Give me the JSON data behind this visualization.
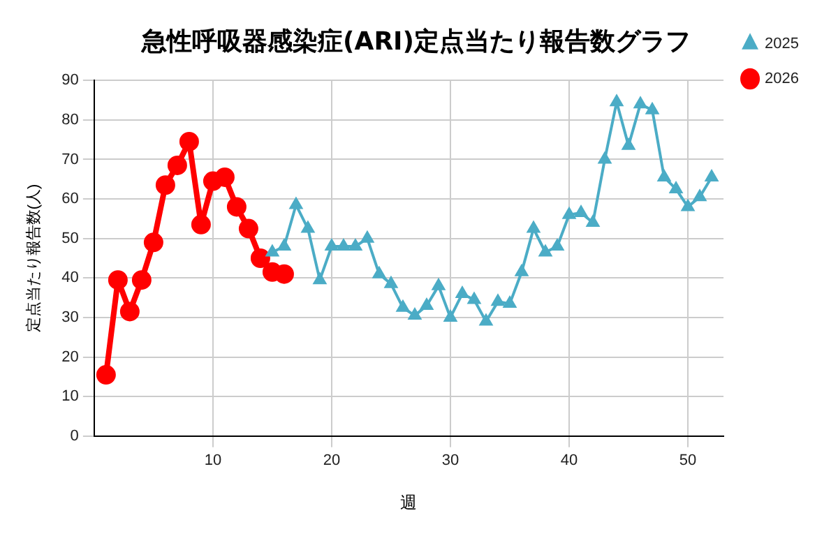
{
  "chart_data": {
    "type": "line",
    "title": "急性呼吸器感染症(ARI)定点当たり報告数グラフ",
    "xlabel": "週",
    "ylabel": "定点当たり報告数(人)",
    "xlim": [
      0,
      53
    ],
    "xticks": [
      10,
      20,
      30,
      40,
      50
    ],
    "ylim": [
      0,
      90
    ],
    "yticks": [
      0,
      10,
      20,
      30,
      40,
      50,
      60,
      70,
      80,
      90
    ],
    "grid": true,
    "legend": "top right",
    "series": [
      {
        "name": "2025",
        "color": "#4bacc6",
        "marker": "triangle",
        "x": [
          15,
          16,
          17,
          18,
          19,
          20,
          21,
          22,
          23,
          24,
          25,
          26,
          27,
          28,
          29,
          30,
          31,
          32,
          33,
          34,
          35,
          36,
          37,
          38,
          39,
          40,
          41,
          42,
          43,
          44,
          45,
          46,
          47,
          48,
          49,
          50,
          51,
          52
        ],
        "values": [
          46.5,
          48,
          58.5,
          52.5,
          39.5,
          48,
          48,
          48,
          50,
          41,
          38.5,
          32.5,
          30.5,
          33,
          38,
          30,
          36,
          34.5,
          29,
          34,
          33.5,
          41.5,
          52.5,
          46.5,
          48,
          56,
          56.5,
          54,
          70,
          84.5,
          73.5,
          84,
          82.5,
          65.5,
          62.5,
          58,
          60.5,
          65.5
        ]
      },
      {
        "name": "2026",
        "color": "#ff0000",
        "marker": "circle",
        "x": [
          1,
          2,
          3,
          4,
          5,
          6,
          7,
          8,
          9,
          10,
          11,
          12,
          13,
          14,
          15,
          16
        ],
        "values": [
          15.5,
          39.5,
          31.5,
          39.5,
          49,
          63.5,
          68.5,
          74.5,
          53.5,
          64.5,
          65.5,
          58,
          52.5,
          45,
          41.5,
          41
        ]
      }
    ]
  }
}
